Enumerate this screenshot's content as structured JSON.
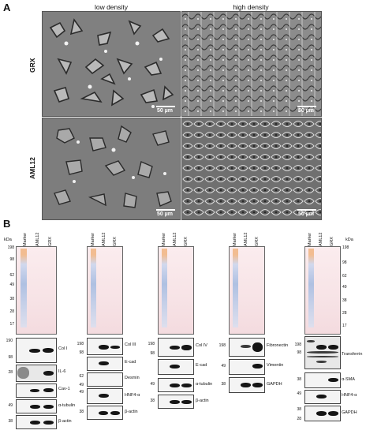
{
  "panel_a": {
    "letter": "A",
    "col_titles": [
      "low density",
      "high density"
    ],
    "rows": [
      {
        "label": "GRX",
        "scale": [
          "50 µm",
          "50 µm"
        ]
      },
      {
        "label": "AML12",
        "scale": [
          "50 µm",
          "50 µm"
        ]
      }
    ]
  },
  "panel_b": {
    "letter": "B",
    "kda_unit": "kDa",
    "lanes": [
      "Marker",
      "AML12",
      "GRX"
    ],
    "mw_ponceau": [
      "198",
      "98",
      "62",
      "49",
      "38",
      "28",
      "17"
    ],
    "blot_groups": [
      {
        "mw_labels": [
          "190",
          "98",
          "28",
          "49",
          "38"
        ],
        "proteins": [
          "Col I",
          "IL-6",
          "Cav-1",
          "α-tubulin",
          "β-actin"
        ]
      },
      {
        "mw_labels": [
          "198",
          "98",
          "62",
          "49",
          "49",
          "38"
        ],
        "proteins": [
          "Col III",
          "E-cad",
          "Desmin",
          "HNF4-α",
          "β-actin"
        ]
      },
      {
        "mw_labels": [
          "198",
          "98",
          "49",
          "38"
        ],
        "proteins": [
          "Col IV",
          "E-cad",
          "α-tubulin",
          "β-actin"
        ]
      },
      {
        "mw_labels": [
          "198",
          "49",
          "38"
        ],
        "proteins": [
          "Fibronectin",
          "Vimentin",
          "GAPDH"
        ]
      },
      {
        "mw_labels": [
          "198",
          "98",
          "38",
          "49",
          "38",
          "28"
        ],
        "proteins": [
          "Transferrin",
          "α-SMA",
          "HNF4-α",
          "GAPDH"
        ]
      }
    ]
  },
  "colors": {
    "ponceau": "#f6e0e3",
    "marker_blue": "#7da2d6",
    "marker_orange": "#f0a35a",
    "band": "#151515"
  }
}
